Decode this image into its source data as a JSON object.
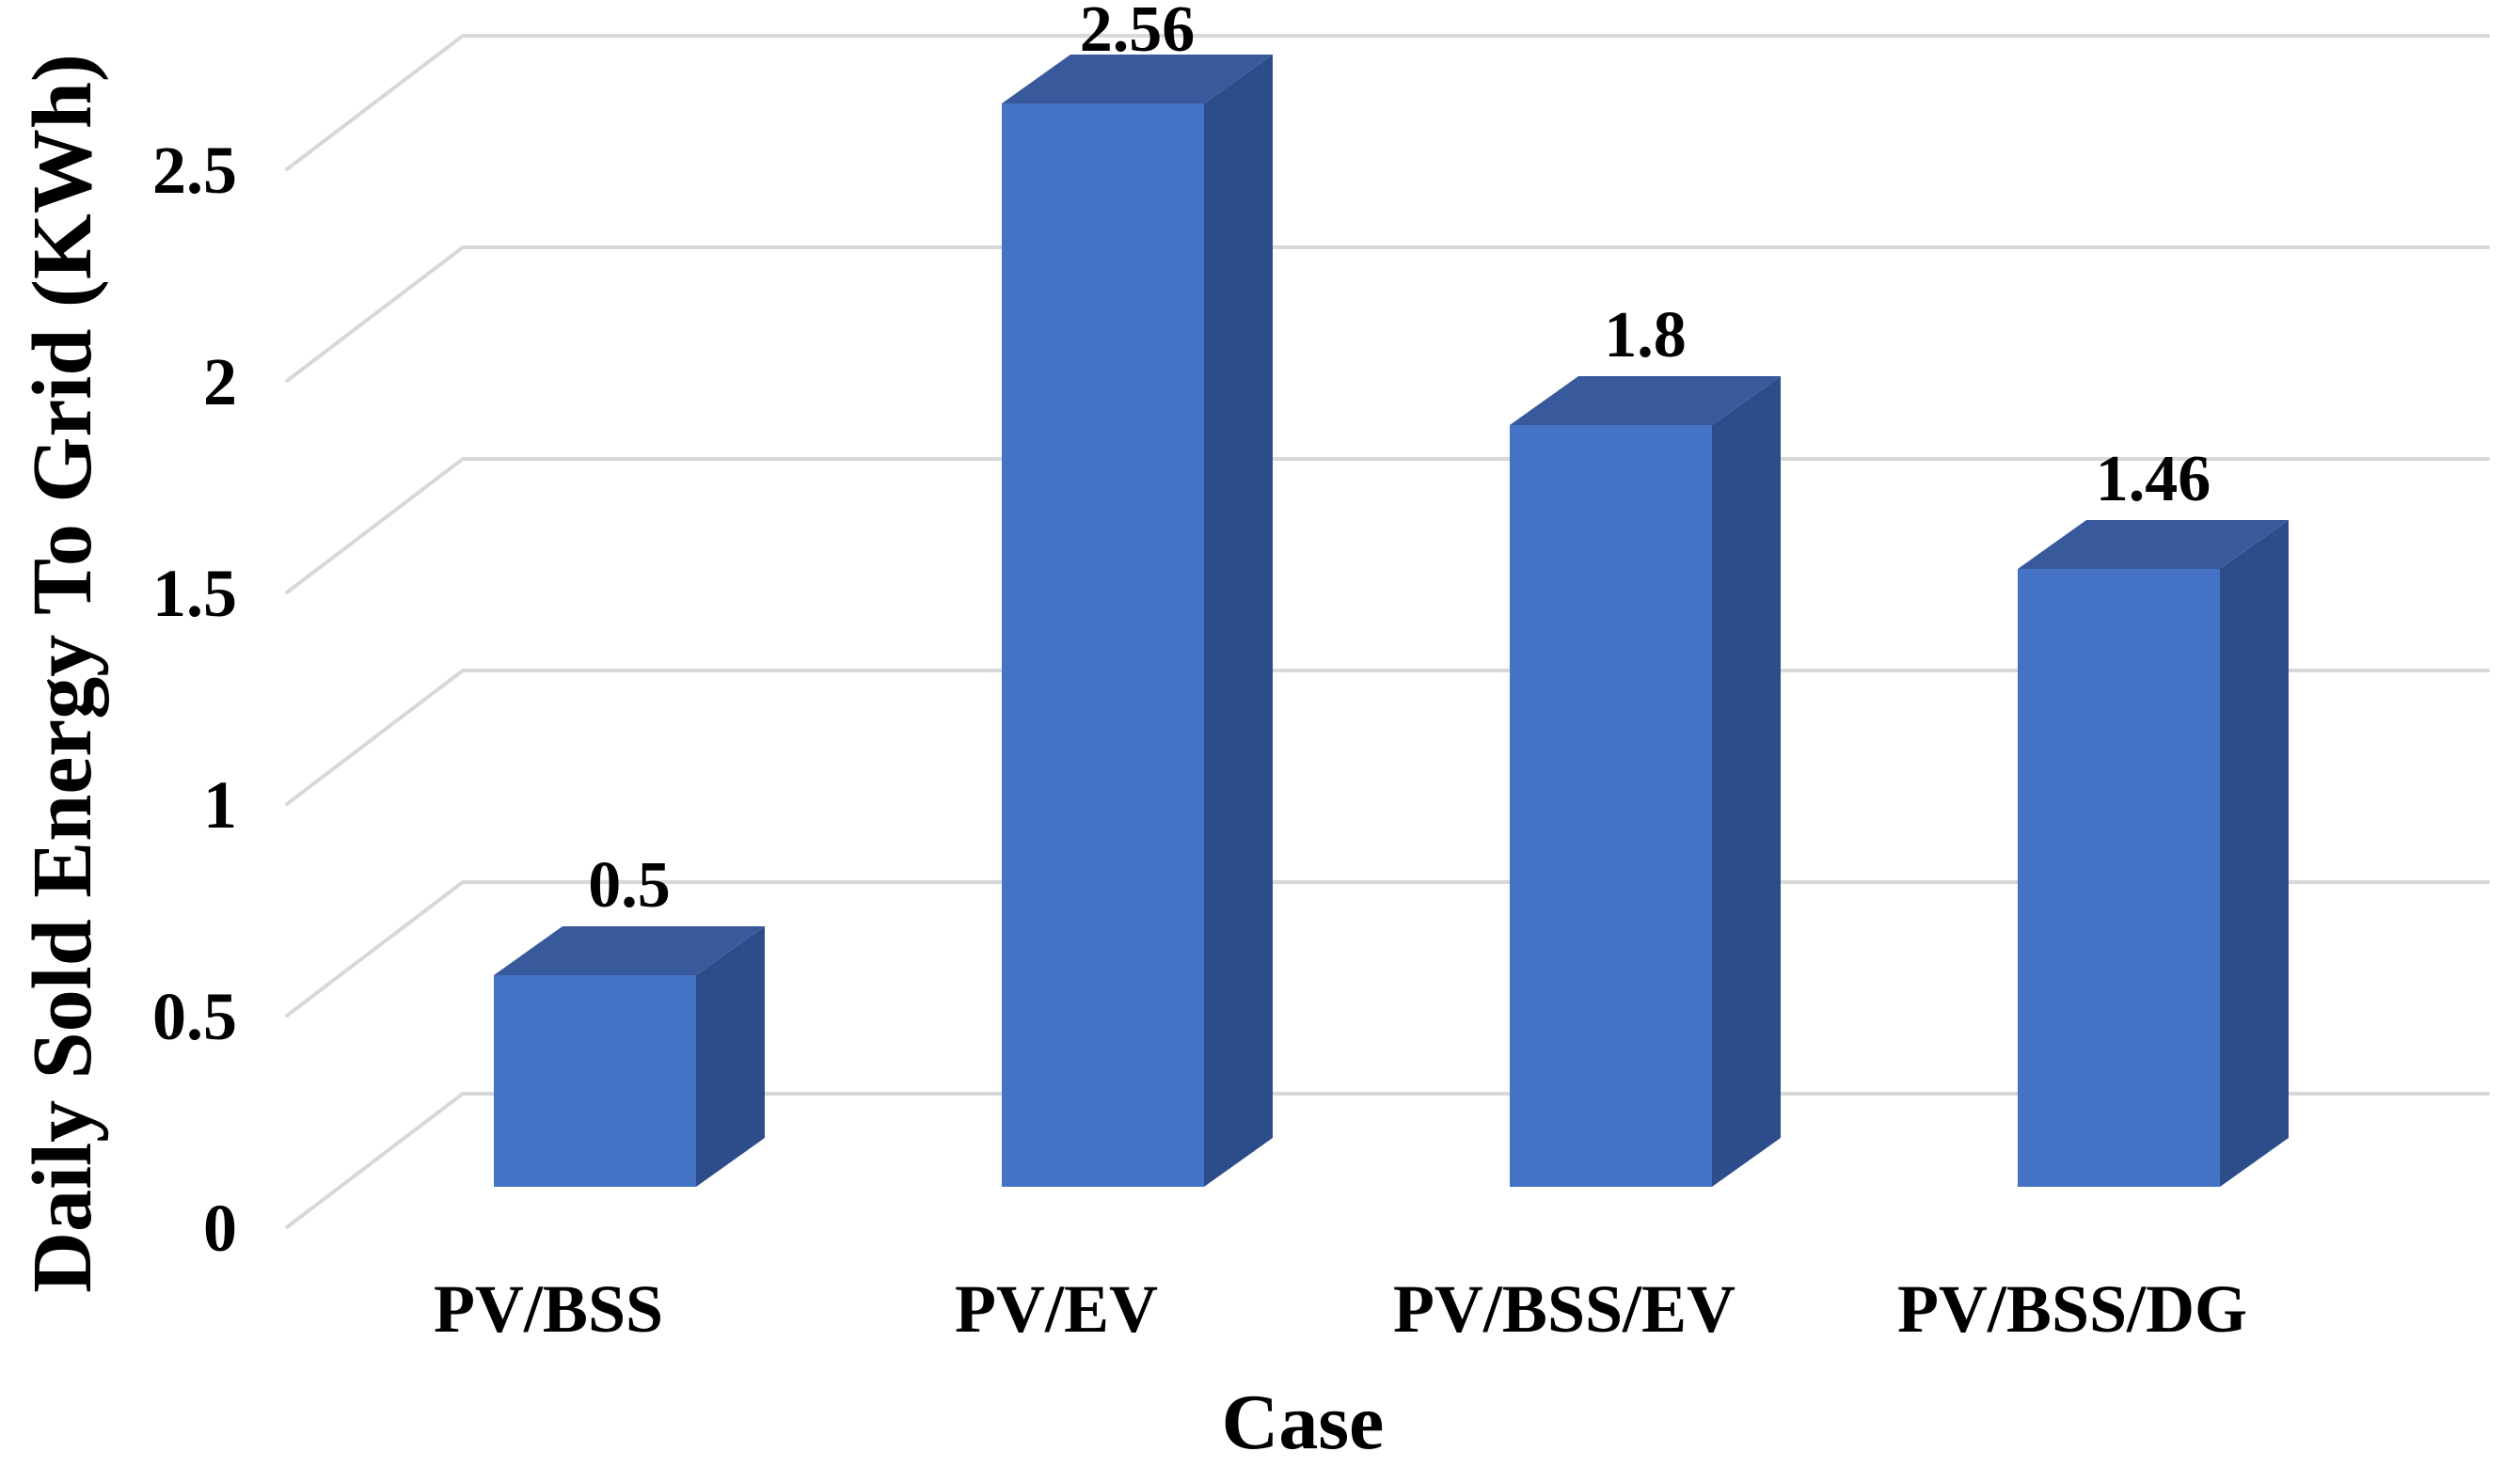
{
  "chart_data": {
    "type": "bar",
    "style": "3d-column",
    "title": "",
    "xlabel": "Case",
    "ylabel": "Daily Sold Energy To Grid (KWh)",
    "categories": [
      "PV/BSS",
      "PV/EV",
      "PV/BSS/EV",
      "PV/BSS/DG"
    ],
    "values": [
      0.5,
      2.56,
      1.8,
      1.46
    ],
    "value_labels": [
      "0.5",
      "2.56",
      "1.8",
      "1.46"
    ],
    "y_ticks": [
      {
        "label": "0",
        "value": 0
      },
      {
        "label": "0.5",
        "value": 0.5
      },
      {
        "label": "1",
        "value": 1
      },
      {
        "label": "1.5",
        "value": 1.5
      },
      {
        "label": "2",
        "value": 2
      },
      {
        "label": "2.5",
        "value": 2.5
      }
    ],
    "ylim": [
      0,
      2.5
    ],
    "grid": true,
    "legend": false,
    "series_name": "Daily Sold Energy To Grid",
    "colors": {
      "bar_front": "#4472C4",
      "bar_top": "#385A9D",
      "bar_side": "#2D4D8A",
      "gridline": "#D8D8D8",
      "text": "#000000",
      "background": "#FFFFFF"
    }
  }
}
